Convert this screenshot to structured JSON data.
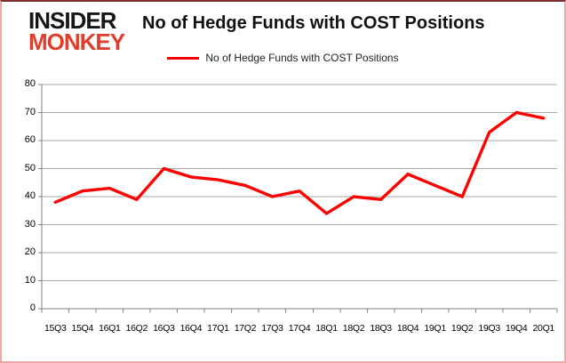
{
  "header": {
    "title": "No of Hedge Funds with COST Positions"
  },
  "logo": {
    "line1": "INSIDER",
    "line2": "MONKEY",
    "line1_color": "#161616",
    "line2_color": "#e03e2d"
  },
  "legend": {
    "label": "No of Hedge Funds with COST Positions",
    "line_color": "#ff0000"
  },
  "colors": {
    "series_line": "#ff0000",
    "gridline": "#a6a6a6",
    "axis": "#808080",
    "frame_border": "#eba9a9"
  },
  "chart_data": {
    "type": "line",
    "title": "No of Hedge Funds with COST Positions",
    "categories": [
      "15Q3",
      "15Q4",
      "16Q1",
      "16Q2",
      "16Q3",
      "16Q4",
      "17Q1",
      "17Q2",
      "17Q3",
      "17Q4",
      "18Q1",
      "18Q2",
      "18Q3",
      "18Q4",
      "19Q1",
      "19Q2",
      "19Q3",
      "19Q4",
      "20Q1"
    ],
    "series": [
      {
        "name": "No of Hedge Funds with COST Positions",
        "color": "#ff0000",
        "values": [
          38,
          42,
          43,
          39,
          50,
          47,
          46,
          44,
          40,
          42,
          34,
          40,
          39,
          48,
          44,
          40,
          63,
          70,
          68
        ]
      }
    ],
    "xlabel": "",
    "ylabel": "",
    "ylim": [
      0,
      80
    ],
    "ytick_step": 10,
    "grid": true,
    "legend_position": "top-center"
  }
}
